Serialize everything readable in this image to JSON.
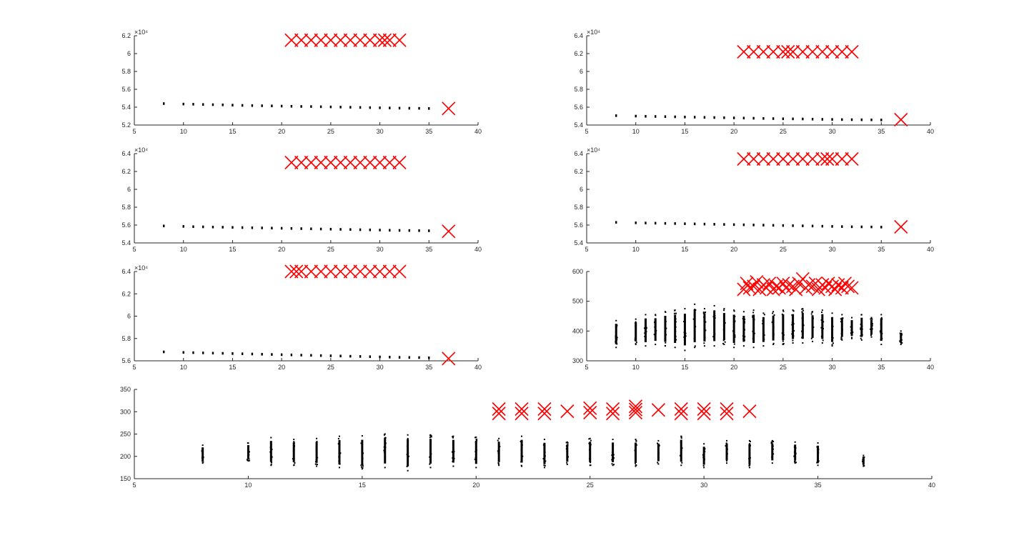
{
  "chart_data": [
    {
      "id": "p1",
      "type": "scatter",
      "xlim": [
        5,
        40
      ],
      "xticks": [
        5,
        10,
        15,
        20,
        25,
        30,
        35,
        40
      ],
      "ylim": [
        52000,
        62000
      ],
      "yticks": [
        52000,
        54000,
        56000,
        58000,
        60000,
        62000
      ],
      "ytick_labels": [
        "5.2",
        "5.4",
        "5.6",
        "5.8",
        "6",
        "6.2"
      ],
      "exponent": "×10⁴",
      "black_points": {
        "x": [
          8,
          10,
          11,
          12,
          13,
          14,
          15,
          16,
          17,
          18,
          19,
          20,
          21,
          22,
          23,
          24,
          25,
          26,
          27,
          28,
          29,
          30,
          31,
          32,
          33,
          34,
          35
        ],
        "y": [
          54400,
          54350,
          54330,
          54300,
          54280,
          54260,
          54230,
          54200,
          54180,
          54160,
          54140,
          54120,
          54100,
          54080,
          54070,
          54050,
          54030,
          54010,
          53990,
          53970,
          53950,
          53930,
          53910,
          53890,
          53880,
          53870,
          53850
        ]
      },
      "red_x": {
        "x": [
          21,
          22,
          23,
          24,
          25,
          26,
          27,
          28,
          29,
          30,
          30.5,
          31,
          32,
          37
        ],
        "y": [
          61500,
          61500,
          61500,
          61500,
          61500,
          61500,
          61500,
          61500,
          61500,
          61500,
          61500,
          61500,
          61500,
          53850
        ]
      }
    },
    {
      "id": "p2",
      "type": "scatter",
      "xlim": [
        5,
        40
      ],
      "xticks": [
        5,
        10,
        15,
        20,
        25,
        30,
        35,
        40
      ],
      "ylim": [
        54000,
        64000
      ],
      "yticks": [
        54000,
        56000,
        58000,
        60000,
        62000,
        64000
      ],
      "ytick_labels": [
        "5.4",
        "5.6",
        "5.8",
        "6",
        "6.2",
        "6.4"
      ],
      "exponent": "×10⁴",
      "black_points": {
        "x": [
          8,
          10,
          11,
          12,
          13,
          14,
          15,
          16,
          17,
          18,
          19,
          20,
          21,
          22,
          23,
          24,
          25,
          26,
          27,
          28,
          29,
          30,
          31,
          32,
          33,
          34,
          35
        ],
        "y": [
          55050,
          55000,
          54980,
          54960,
          54940,
          54920,
          54900,
          54880,
          54860,
          54840,
          54820,
          54800,
          54780,
          54760,
          54740,
          54720,
          54700,
          54690,
          54680,
          54660,
          54640,
          54630,
          54610,
          54600,
          54590,
          54580,
          54570
        ]
      },
      "red_x": {
        "x": [
          21,
          22,
          23,
          24,
          25,
          25.5,
          26,
          27,
          28,
          29,
          30,
          31,
          32,
          37
        ],
        "y": [
          62200,
          62200,
          62200,
          62200,
          62200,
          62200,
          62200,
          62200,
          62200,
          62200,
          62200,
          62200,
          62200,
          54600
        ]
      }
    },
    {
      "id": "p3",
      "type": "scatter",
      "xlim": [
        5,
        40
      ],
      "xticks": [
        5,
        10,
        15,
        20,
        25,
        30,
        35,
        40
      ],
      "ylim": [
        54000,
        64000
      ],
      "yticks": [
        54000,
        56000,
        58000,
        60000,
        62000,
        64000
      ],
      "ytick_labels": [
        "5.4",
        "5.6",
        "5.8",
        "6",
        "6.2",
        "6.4"
      ],
      "exponent": "×10⁴",
      "black_points": {
        "x": [
          8,
          10,
          11,
          12,
          13,
          14,
          15,
          16,
          17,
          18,
          19,
          20,
          21,
          22,
          23,
          24,
          25,
          26,
          27,
          28,
          29,
          30,
          31,
          32,
          33,
          34,
          35
        ],
        "y": [
          55900,
          55850,
          55820,
          55800,
          55780,
          55760,
          55740,
          55720,
          55700,
          55680,
          55660,
          55640,
          55620,
          55600,
          55580,
          55560,
          55540,
          55520,
          55500,
          55480,
          55460,
          55440,
          55420,
          55400,
          55390,
          55380,
          55360
        ]
      },
      "red_x": {
        "x": [
          21,
          22,
          23,
          24,
          25,
          26,
          27,
          28,
          29,
          30,
          31,
          32,
          37
        ],
        "y": [
          63000,
          63000,
          63000,
          63000,
          63000,
          63000,
          63000,
          63000,
          63000,
          63000,
          63000,
          63000,
          55300
        ]
      }
    },
    {
      "id": "p4",
      "type": "scatter",
      "xlim": [
        5,
        40
      ],
      "xticks": [
        5,
        10,
        15,
        20,
        25,
        30,
        35,
        40
      ],
      "ylim": [
        54000,
        64000
      ],
      "yticks": [
        54000,
        56000,
        58000,
        60000,
        62000,
        64000
      ],
      "ytick_labels": [
        "5.4",
        "5.6",
        "5.8",
        "6",
        "6.2",
        "6.4"
      ],
      "exponent": "×10⁴",
      "black_points": {
        "x": [
          8,
          10,
          11,
          12,
          13,
          14,
          15,
          16,
          17,
          18,
          19,
          20,
          21,
          22,
          23,
          24,
          25,
          26,
          27,
          28,
          29,
          30,
          31,
          32,
          33,
          34,
          35
        ],
        "y": [
          56300,
          56250,
          56230,
          56210,
          56190,
          56170,
          56150,
          56130,
          56110,
          56090,
          56070,
          56050,
          56030,
          56010,
          55990,
          55970,
          55950,
          55930,
          55910,
          55890,
          55870,
          55850,
          55830,
          55810,
          55800,
          55790,
          55770
        ]
      },
      "red_x": {
        "x": [
          21,
          22,
          23,
          24,
          25,
          26,
          27,
          28,
          29,
          29.5,
          30,
          31,
          32,
          37
        ],
        "y": [
          63400,
          63400,
          63400,
          63400,
          63400,
          63400,
          63400,
          63400,
          63400,
          63400,
          63400,
          63400,
          63400,
          55800
        ]
      }
    },
    {
      "id": "p5",
      "type": "scatter",
      "xlim": [
        5,
        40
      ],
      "xticks": [
        5,
        10,
        15,
        20,
        25,
        30,
        35,
        40
      ],
      "ylim": [
        56000,
        64000
      ],
      "yticks": [
        56000,
        58000,
        60000,
        62000,
        64000
      ],
      "ytick_labels": [
        "5.6",
        "5.8",
        "6",
        "6.2",
        "6.4"
      ],
      "exponent": "×10⁴",
      "black_points": {
        "x": [
          8,
          10,
          11,
          12,
          13,
          14,
          15,
          16,
          17,
          18,
          19,
          20,
          21,
          22,
          23,
          24,
          25,
          26,
          27,
          28,
          29,
          30,
          31,
          32,
          33,
          34,
          35
        ],
        "y": [
          56800,
          56750,
          56730,
          56710,
          56690,
          56670,
          56650,
          56630,
          56610,
          56590,
          56570,
          56550,
          56530,
          56510,
          56490,
          56470,
          56450,
          56430,
          56410,
          56390,
          56370,
          56350,
          56330,
          56310,
          56300,
          56290,
          56270
        ]
      },
      "red_x": {
        "x": [
          21,
          21.5,
          22,
          23,
          24,
          25,
          26,
          27,
          28,
          29,
          30,
          31,
          32,
          37
        ],
        "y": [
          64000,
          64000,
          64000,
          64000,
          64000,
          64000,
          64000,
          64000,
          64000,
          64000,
          64000,
          64000,
          64000,
          56200
        ]
      }
    },
    {
      "id": "p6",
      "type": "scatter",
      "xlim": [
        5,
        40
      ],
      "xticks": [
        5,
        10,
        15,
        20,
        25,
        30,
        35,
        40
      ],
      "ylim": [
        300,
        600
      ],
      "yticks": [
        300,
        400,
        500,
        600
      ],
      "ytick_labels": [
        "300",
        "400",
        "500",
        "600"
      ],
      "exponent": "",
      "black_columns": [
        {
          "x": 8,
          "lo": 345,
          "hi": 435
        },
        {
          "x": 10,
          "lo": 355,
          "hi": 440
        },
        {
          "x": 11,
          "lo": 350,
          "hi": 455
        },
        {
          "x": 12,
          "lo": 355,
          "hi": 455
        },
        {
          "x": 13,
          "lo": 350,
          "hi": 465
        },
        {
          "x": 14,
          "lo": 345,
          "hi": 470
        },
        {
          "x": 15,
          "lo": 335,
          "hi": 475
        },
        {
          "x": 16,
          "lo": 345,
          "hi": 490
        },
        {
          "x": 17,
          "lo": 350,
          "hi": 475
        },
        {
          "x": 18,
          "lo": 350,
          "hi": 485
        },
        {
          "x": 19,
          "lo": 355,
          "hi": 475
        },
        {
          "x": 20,
          "lo": 345,
          "hi": 470
        },
        {
          "x": 21,
          "lo": 350,
          "hi": 465
        },
        {
          "x": 22,
          "lo": 345,
          "hi": 470
        },
        {
          "x": 23,
          "lo": 350,
          "hi": 460
        },
        {
          "x": 24,
          "lo": 355,
          "hi": 465
        },
        {
          "x": 25,
          "lo": 355,
          "hi": 470
        },
        {
          "x": 26,
          "lo": 360,
          "hi": 470
        },
        {
          "x": 27,
          "lo": 360,
          "hi": 475
        },
        {
          "x": 28,
          "lo": 365,
          "hi": 465
        },
        {
          "x": 29,
          "lo": 360,
          "hi": 470
        },
        {
          "x": 30,
          "lo": 350,
          "hi": 460
        },
        {
          "x": 31,
          "lo": 370,
          "hi": 455
        },
        {
          "x": 32,
          "lo": 375,
          "hi": 445
        },
        {
          "x": 33,
          "lo": 370,
          "hi": 455
        },
        {
          "x": 34,
          "lo": 380,
          "hi": 445
        },
        {
          "x": 35,
          "lo": 355,
          "hi": 455
        },
        {
          "x": 37,
          "lo": 355,
          "hi": 400
        }
      ],
      "red_x": {
        "x": [
          21,
          21.3,
          21.6,
          22,
          22.3,
          22.6,
          23,
          23.3,
          23.6,
          24,
          24.3,
          24.6,
          25,
          25.3,
          25.6,
          26,
          26.3,
          26.6,
          27,
          27.3,
          27.6,
          28,
          28.3,
          28.6,
          29,
          29.3,
          29.6,
          30,
          30.3,
          30.6,
          31,
          31.3,
          31.6,
          32
        ],
        "y": [
          540,
          560,
          545,
          550,
          565,
          540,
          555,
          545,
          560,
          540,
          550,
          545,
          560,
          545,
          555,
          550,
          540,
          560,
          575,
          545,
          555,
          550,
          560,
          540,
          555,
          545,
          560,
          550,
          540,
          555,
          545,
          560,
          550,
          545
        ]
      }
    },
    {
      "id": "p7",
      "type": "scatter",
      "xlim": [
        5,
        40
      ],
      "xticks": [
        5,
        10,
        15,
        20,
        25,
        30,
        35,
        40
      ],
      "ylim": [
        150,
        350
      ],
      "yticks": [
        150,
        200,
        250,
        300,
        350
      ],
      "ytick_labels": [
        "150",
        "200",
        "250",
        "300",
        "350"
      ],
      "exponent": "",
      "black_columns": [
        {
          "x": 8,
          "lo": 185,
          "hi": 225
        },
        {
          "x": 10,
          "lo": 190,
          "hi": 230
        },
        {
          "x": 11,
          "lo": 180,
          "hi": 242
        },
        {
          "x": 12,
          "lo": 180,
          "hi": 238
        },
        {
          "x": 13,
          "lo": 178,
          "hi": 240
        },
        {
          "x": 14,
          "lo": 175,
          "hi": 245
        },
        {
          "x": 15,
          "lo": 172,
          "hi": 246
        },
        {
          "x": 16,
          "lo": 175,
          "hi": 250
        },
        {
          "x": 17,
          "lo": 168,
          "hi": 248
        },
        {
          "x": 18,
          "lo": 175,
          "hi": 248
        },
        {
          "x": 19,
          "lo": 178,
          "hi": 245
        },
        {
          "x": 20,
          "lo": 175,
          "hi": 243
        },
        {
          "x": 21,
          "lo": 180,
          "hi": 240
        },
        {
          "x": 22,
          "lo": 178,
          "hi": 245
        },
        {
          "x": 23,
          "lo": 175,
          "hi": 238
        },
        {
          "x": 24,
          "lo": 182,
          "hi": 232
        },
        {
          "x": 25,
          "lo": 180,
          "hi": 240
        },
        {
          "x": 26,
          "lo": 180,
          "hi": 238
        },
        {
          "x": 27,
          "lo": 178,
          "hi": 238
        },
        {
          "x": 28,
          "lo": 183,
          "hi": 235
        },
        {
          "x": 29,
          "lo": 180,
          "hi": 245
        },
        {
          "x": 30,
          "lo": 175,
          "hi": 228
        },
        {
          "x": 31,
          "lo": 185,
          "hi": 235
        },
        {
          "x": 32,
          "lo": 175,
          "hi": 235
        },
        {
          "x": 33,
          "lo": 185,
          "hi": 235
        },
        {
          "x": 34,
          "lo": 185,
          "hi": 232
        },
        {
          "x": 35,
          "lo": 180,
          "hi": 230
        },
        {
          "x": 37,
          "lo": 178,
          "hi": 202
        }
      ],
      "red_x": {
        "x": [
          21,
          21,
          22,
          22,
          23,
          23,
          24,
          25,
          25,
          26,
          26,
          27,
          27,
          27,
          28,
          29,
          29,
          30,
          30,
          31,
          31,
          32
        ],
        "y": [
          296,
          306,
          296,
          306,
          296,
          306,
          301,
          298,
          308,
          296,
          306,
          298,
          305,
          312,
          304,
          296,
          306,
          296,
          306,
          296,
          306,
          301
        ]
      }
    }
  ],
  "colors": {
    "black_marker": "#000000",
    "red_marker": "#ff0000",
    "axis": "#262626"
  }
}
